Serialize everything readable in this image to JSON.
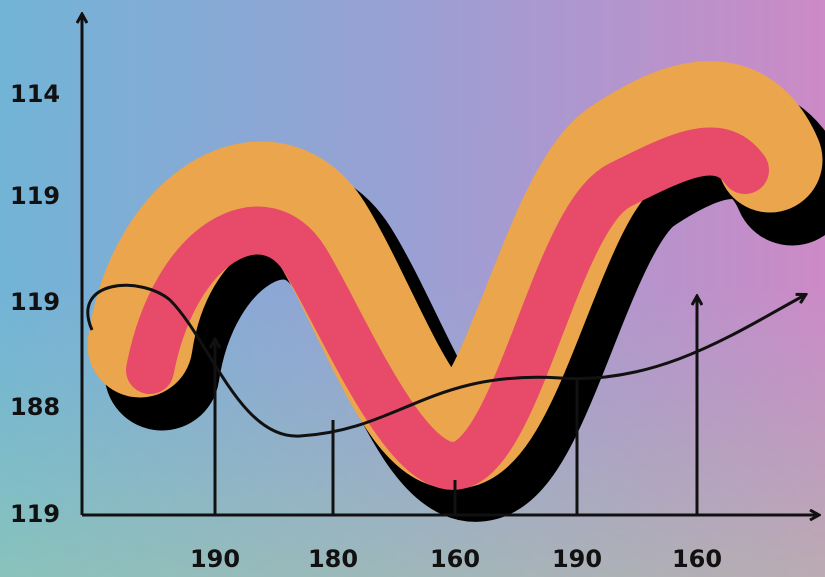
{
  "y_labels": [
    "114",
    "119",
    "119",
    "188",
    "119"
  ],
  "x_labels": [
    "190",
    "180",
    "160",
    "190",
    "160"
  ]
}
